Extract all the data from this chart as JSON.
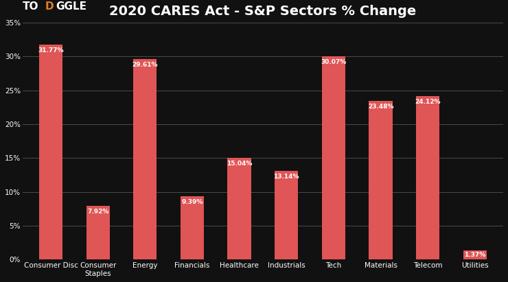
{
  "title": "2020 CARES Act - S&P Sectors % Change",
  "categories": [
    "Consumer Disc",
    "Consumer\nStaples",
    "Energy",
    "Financials",
    "Healthcare",
    "Industrials",
    "Tech",
    "Materials",
    "Telecom",
    "Utilities"
  ],
  "values": [
    31.77,
    7.92,
    29.61,
    9.39,
    15.04,
    13.14,
    30.07,
    23.48,
    24.12,
    1.37
  ],
  "bar_color": "#e05555",
  "background_color": "#111111",
  "text_color": "#ffffff",
  "grid_color": "#555555",
  "title_color": "#ffffff",
  "ylim": [
    0,
    35
  ],
  "yticks": [
    0,
    5,
    10,
    15,
    20,
    25,
    30,
    35
  ],
  "ytick_labels": [
    "0%",
    "5%",
    "10%",
    "15%",
    "20%",
    "25%",
    "30%",
    "35%"
  ],
  "title_fontsize": 14,
  "tick_fontsize": 7.5,
  "bar_label_fontsize": 6.5,
  "bar_label_color": "#ffffff",
  "logo_to_color": "#ffffff",
  "logo_d_color": "#e08020",
  "logo_ggle_color": "#ffffff",
  "logo_fontsize": 11
}
